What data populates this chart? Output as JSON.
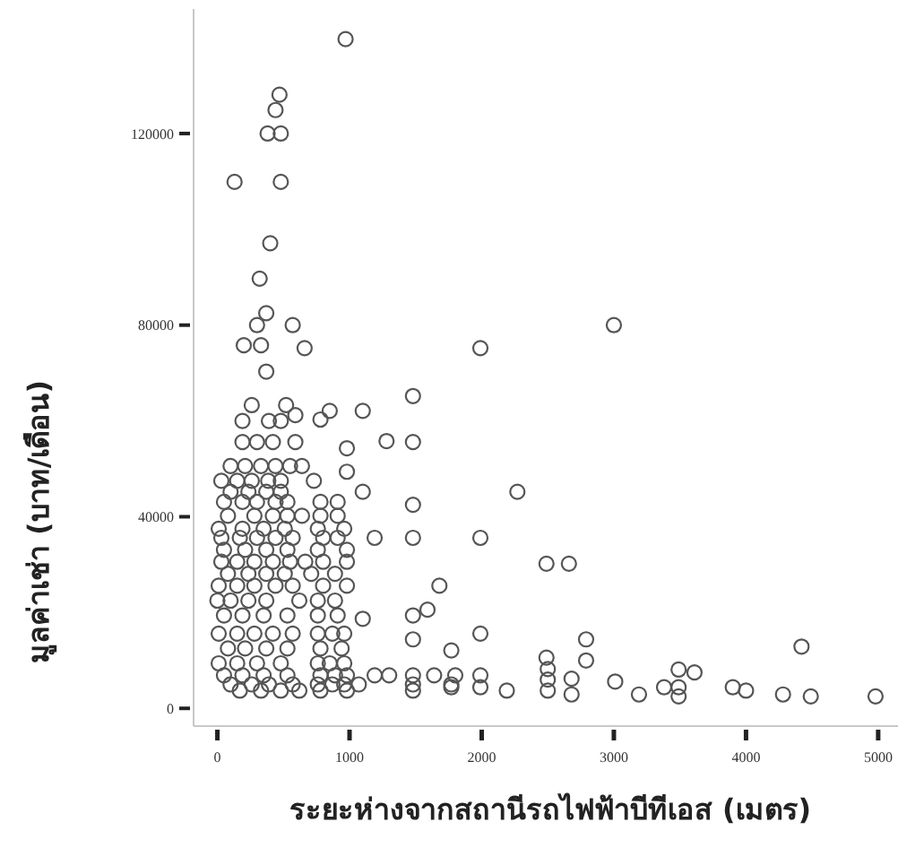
{
  "chart_data": {
    "type": "scatter",
    "xlabel": "ระยะห่างจากสถานีรถไฟฟ้าบีทีเอส (เมตร)",
    "ylabel": "มูลค่าเช่า (บาท/เดือน)",
    "xlim": [
      -180,
      5150
    ],
    "ylim": [
      -3700,
      146000
    ],
    "xticks": [
      0,
      1000,
      2000,
      3000,
      4000,
      5000
    ],
    "yticks": [
      0,
      40000,
      80000,
      120000
    ],
    "marker": "circle",
    "series": [
      {
        "color": "#555555",
        "x": [
          970,
          470,
          440,
          380,
          480,
          130,
          480,
          400,
          320,
          370,
          300,
          570,
          200,
          330,
          660,
          1990,
          370,
          1480,
          260,
          520,
          850,
          1100,
          590,
          780,
          1280,
          1480,
          980,
          2270,
          980,
          1100,
          1480,
          1990,
          1190,
          1480,
          2490,
          2660,
          1680,
          1590,
          1480,
          1100,
          1990,
          1480,
          1770,
          2490,
          3000,
          2790,
          2790,
          4420,
          1990,
          1990,
          2190,
          2500,
          2500,
          2500,
          2680,
          2680,
          3010,
          3190,
          3380,
          3490,
          3490,
          3490,
          3610,
          3900,
          4000,
          4280,
          4490,
          4980,
          1770,
          190,
          390,
          480,
          190,
          300,
          420,
          590,
          100,
          210,
          330,
          440,
          550,
          640,
          30,
          150,
          260,
          385,
          480,
          730,
          100,
          235,
          370,
          480,
          50,
          190,
          300,
          440,
          530,
          780,
          910,
          80,
          280,
          420,
          530,
          640,
          780,
          910,
          10,
          190,
          350,
          510,
          760,
          960,
          30,
          170,
          300,
          440,
          570,
          800,
          910,
          50,
          210,
          370,
          530,
          760,
          980,
          30,
          150,
          280,
          420,
          550,
          665,
          800,
          980,
          80,
          235,
          370,
          510,
          710,
          890,
          10,
          150,
          280,
          440,
          570,
          800,
          980,
          0,
          100,
          235,
          370,
          620,
          760,
          890,
          50,
          190,
          350,
          530,
          760,
          910,
          10,
          150,
          280,
          420,
          570,
          760,
          870,
          960,
          80,
          210,
          370,
          530,
          780,
          940,
          10,
          150,
          300,
          480,
          760,
          850,
          960,
          50,
          190,
          350,
          530,
          780,
          890,
          980,
          1190,
          1300,
          1480,
          1640,
          1800,
          100,
          260,
          390,
          570,
          760,
          870,
          960,
          1070,
          1480,
          1770,
          170,
          330,
          480,
          620,
          780,
          980,
          1480
        ],
        "values": [
          139700,
          128100,
          124900,
          120000,
          120000,
          109900,
          109900,
          97100,
          89700,
          82500,
          80000,
          80000,
          75800,
          75800,
          75200,
          75200,
          70300,
          65200,
          63300,
          63300,
          62100,
          62100,
          61200,
          60300,
          55800,
          55600,
          54300,
          45200,
          49400,
          45200,
          42500,
          35600,
          35600,
          35600,
          30200,
          30200,
          25600,
          20600,
          19400,
          18700,
          15600,
          14400,
          12100,
          10600,
          80000,
          14400,
          10000,
          12900,
          6900,
          4400,
          3700,
          8200,
          6000,
          3700,
          6200,
          2900,
          5600,
          2900,
          4400,
          8100,
          4400,
          2500,
          7500,
          4400,
          3700,
          2900,
          2500,
          2500,
          4400,
          60000,
          60000,
          60000,
          55600,
          55600,
          55600,
          55600,
          50600,
          50600,
          50600,
          50600,
          50600,
          50600,
          47500,
          47500,
          47500,
          47500,
          47500,
          47500,
          45200,
          45200,
          45200,
          45200,
          43100,
          43100,
          43100,
          43100,
          43100,
          43100,
          43100,
          40200,
          40200,
          40200,
          40200,
          40200,
          40200,
          40200,
          37500,
          37500,
          37500,
          37500,
          37500,
          37500,
          35600,
          35600,
          35600,
          35600,
          35600,
          35600,
          35600,
          33100,
          33100,
          33100,
          33100,
          33100,
          33100,
          30600,
          30600,
          30600,
          30600,
          30600,
          30600,
          30600,
          30600,
          28100,
          28100,
          28100,
          28100,
          28100,
          28100,
          25600,
          25600,
          25600,
          25600,
          25600,
          25600,
          25600,
          22500,
          22500,
          22500,
          22500,
          22500,
          22500,
          22500,
          19400,
          19400,
          19400,
          19400,
          19400,
          19400,
          15600,
          15600,
          15600,
          15600,
          15600,
          15600,
          15600,
          15600,
          12500,
          12500,
          12500,
          12500,
          12500,
          12500,
          9400,
          9400,
          9400,
          9400,
          9400,
          9400,
          9400,
          6900,
          6900,
          6900,
          6900,
          6900,
          6900,
          6900,
          6900,
          6900,
          6900,
          6900,
          6900,
          5000,
          5000,
          5000,
          5000,
          5000,
          5000,
          5000,
          5000,
          5000,
          5000,
          3700,
          3700,
          3700,
          3700,
          3700,
          3700,
          3700
        ]
      }
    ]
  }
}
